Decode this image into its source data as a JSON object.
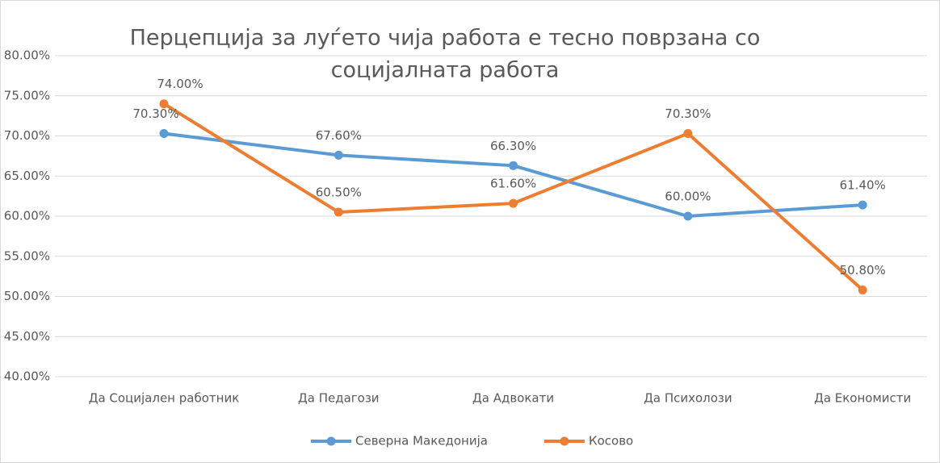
{
  "chart_data": {
    "type": "line",
    "title": [
      "Перцепција за луѓето чија работа е тесно поврзана со",
      "социјалната работа"
    ],
    "categories": [
      "Да Социјален работник",
      "Да Педагози",
      "Да Адвокати",
      "Да Психолози",
      "Да Економисти"
    ],
    "series": [
      {
        "name": "Северна Македонија",
        "color": "#5b9bd5",
        "values": [
          70.3,
          67.6,
          66.3,
          60.0,
          61.4
        ],
        "value_labels": [
          "70.30%",
          "67.60%",
          "66.30%",
          "60.00%",
          "61.40%"
        ]
      },
      {
        "name": "Косово",
        "color": "#ed7d31",
        "values": [
          74.0,
          60.5,
          61.6,
          70.3,
          50.8
        ],
        "value_labels": [
          "74.00%",
          "60.50%",
          "61.60%",
          "70.30%",
          "50.80%"
        ]
      }
    ],
    "ylim": [
      40,
      80
    ],
    "yticks": [
      {
        "value": 40,
        "label": "40.00%"
      },
      {
        "value": 45,
        "label": "45.00%"
      },
      {
        "value": 50,
        "label": "50.00%"
      },
      {
        "value": 55,
        "label": "55.00%"
      },
      {
        "value": 60,
        "label": "60.00%"
      },
      {
        "value": 65,
        "label": "65.00%"
      },
      {
        "value": 70,
        "label": "70.00%"
      },
      {
        "value": 75,
        "label": "75.00%"
      },
      {
        "value": 80,
        "label": "80.00%"
      }
    ],
    "grid": true,
    "legend": "bottom"
  }
}
